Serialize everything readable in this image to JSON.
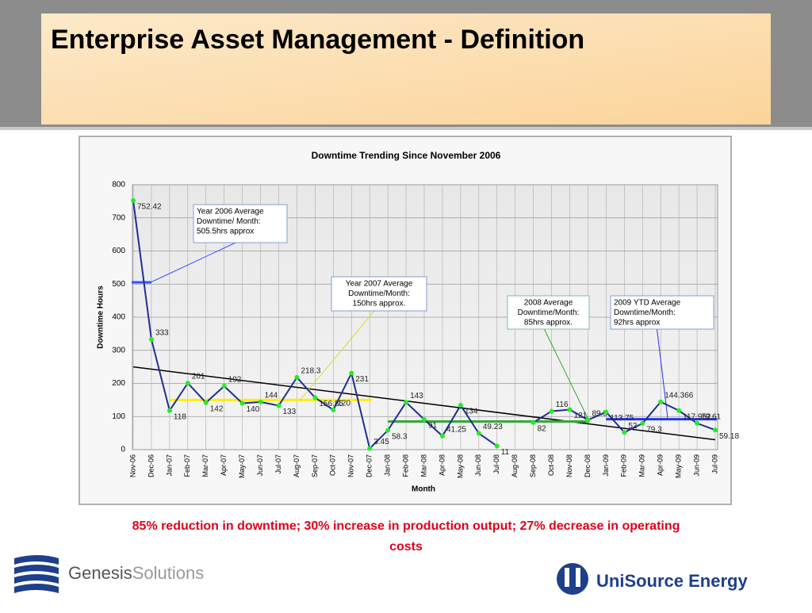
{
  "slide_title": "Enterprise Asset Management - Definition",
  "caption": "85% reduction in downtime; 30% increase in production output; 27% decrease in operating costs",
  "logos": {
    "left": {
      "name": "Genesis",
      "suffix": "Solutions"
    },
    "right": "UniSource Energy"
  },
  "chart_data": {
    "type": "line",
    "title": "Downtime Trending Since November 2006",
    "x_label": "Month",
    "y_label": "Downtime Hours",
    "categories": [
      "Nov-06",
      "Dec-06",
      "Jan-07",
      "Feb-07",
      "Mar-07",
      "Apr-07",
      "May-07",
      "Jun-07",
      "Jul-07",
      "Aug-07",
      "Sep-07",
      "Oct-07",
      "Nov-07",
      "Dec-07",
      "Jan-08",
      "Feb-08",
      "Mar-08",
      "Apr-08",
      "May-08",
      "Jun-08",
      "Jul-08",
      "Aug-08",
      "Sep-08",
      "Oct-08",
      "Nov-08",
      "Dec-08",
      "Jan-09",
      "Feb-09",
      "Mar-09",
      "Apr-09",
      "May-09",
      "Jun-09",
      "Jul-09"
    ],
    "series": [
      {
        "name": "Downtime",
        "color": "#1f2f8f",
        "values": [
          752.42,
          333,
          118,
          201,
          142,
          192,
          140,
          144,
          133,
          218.3,
          156.85,
          120,
          231,
          3.45,
          58.3,
          143,
          91,
          41.25,
          134,
          49.23,
          11,
          null,
          82,
          116,
          121,
          89.5,
          113.75,
          52,
          79.3,
          144.366,
          117.952,
          79.61,
          59.18
        ]
      }
    ],
    "ylim": [
      0,
      800
    ],
    "yticks": [
      0,
      100,
      200,
      300,
      400,
      500,
      600,
      700,
      800
    ],
    "grid": true,
    "trendline": {
      "start": 250,
      "end": 30,
      "color": "#000000"
    },
    "averages": [
      {
        "value": 505.5,
        "from": 0,
        "to": 1,
        "color": "#3355ff",
        "note": [
          "Year 2006 Average",
          "Downtime/ Month:",
          "505.5hrs approx"
        ]
      },
      {
        "value": 150,
        "from": 2,
        "to": 13,
        "color": "#ffee00",
        "note": [
          "Year 2007 Average",
          "Downtime/Month:",
          "150hrs approx."
        ]
      },
      {
        "value": 85,
        "from": 14,
        "to": 25,
        "color": "#33aa33",
        "note": [
          "2008 Average",
          "Downtime/Month:",
          "85hrs approx."
        ]
      },
      {
        "value": 92,
        "from": 26,
        "to": 32,
        "color": "#2233ee",
        "note": [
          "2009 YTD Average",
          "Downtime/Month:",
          "92hrs approx"
        ]
      }
    ]
  }
}
